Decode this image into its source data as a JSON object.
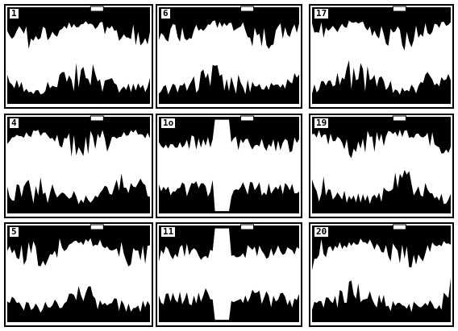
{
  "panels": [
    {
      "label": "1",
      "style": "wavy"
    },
    {
      "label": "6",
      "style": "wavy"
    },
    {
      "label": "17",
      "style": "wavy"
    },
    {
      "label": "4",
      "style": "wavy"
    },
    {
      "label": "1o",
      "style": "spike"
    },
    {
      "label": "19",
      "style": "wavy"
    },
    {
      "label": "5",
      "style": "wavy"
    },
    {
      "label": "11",
      "style": "spike"
    },
    {
      "label": "20",
      "style": "wavy"
    }
  ],
  "colors": {
    "ink": "#000000",
    "paper": "#ffffff"
  }
}
